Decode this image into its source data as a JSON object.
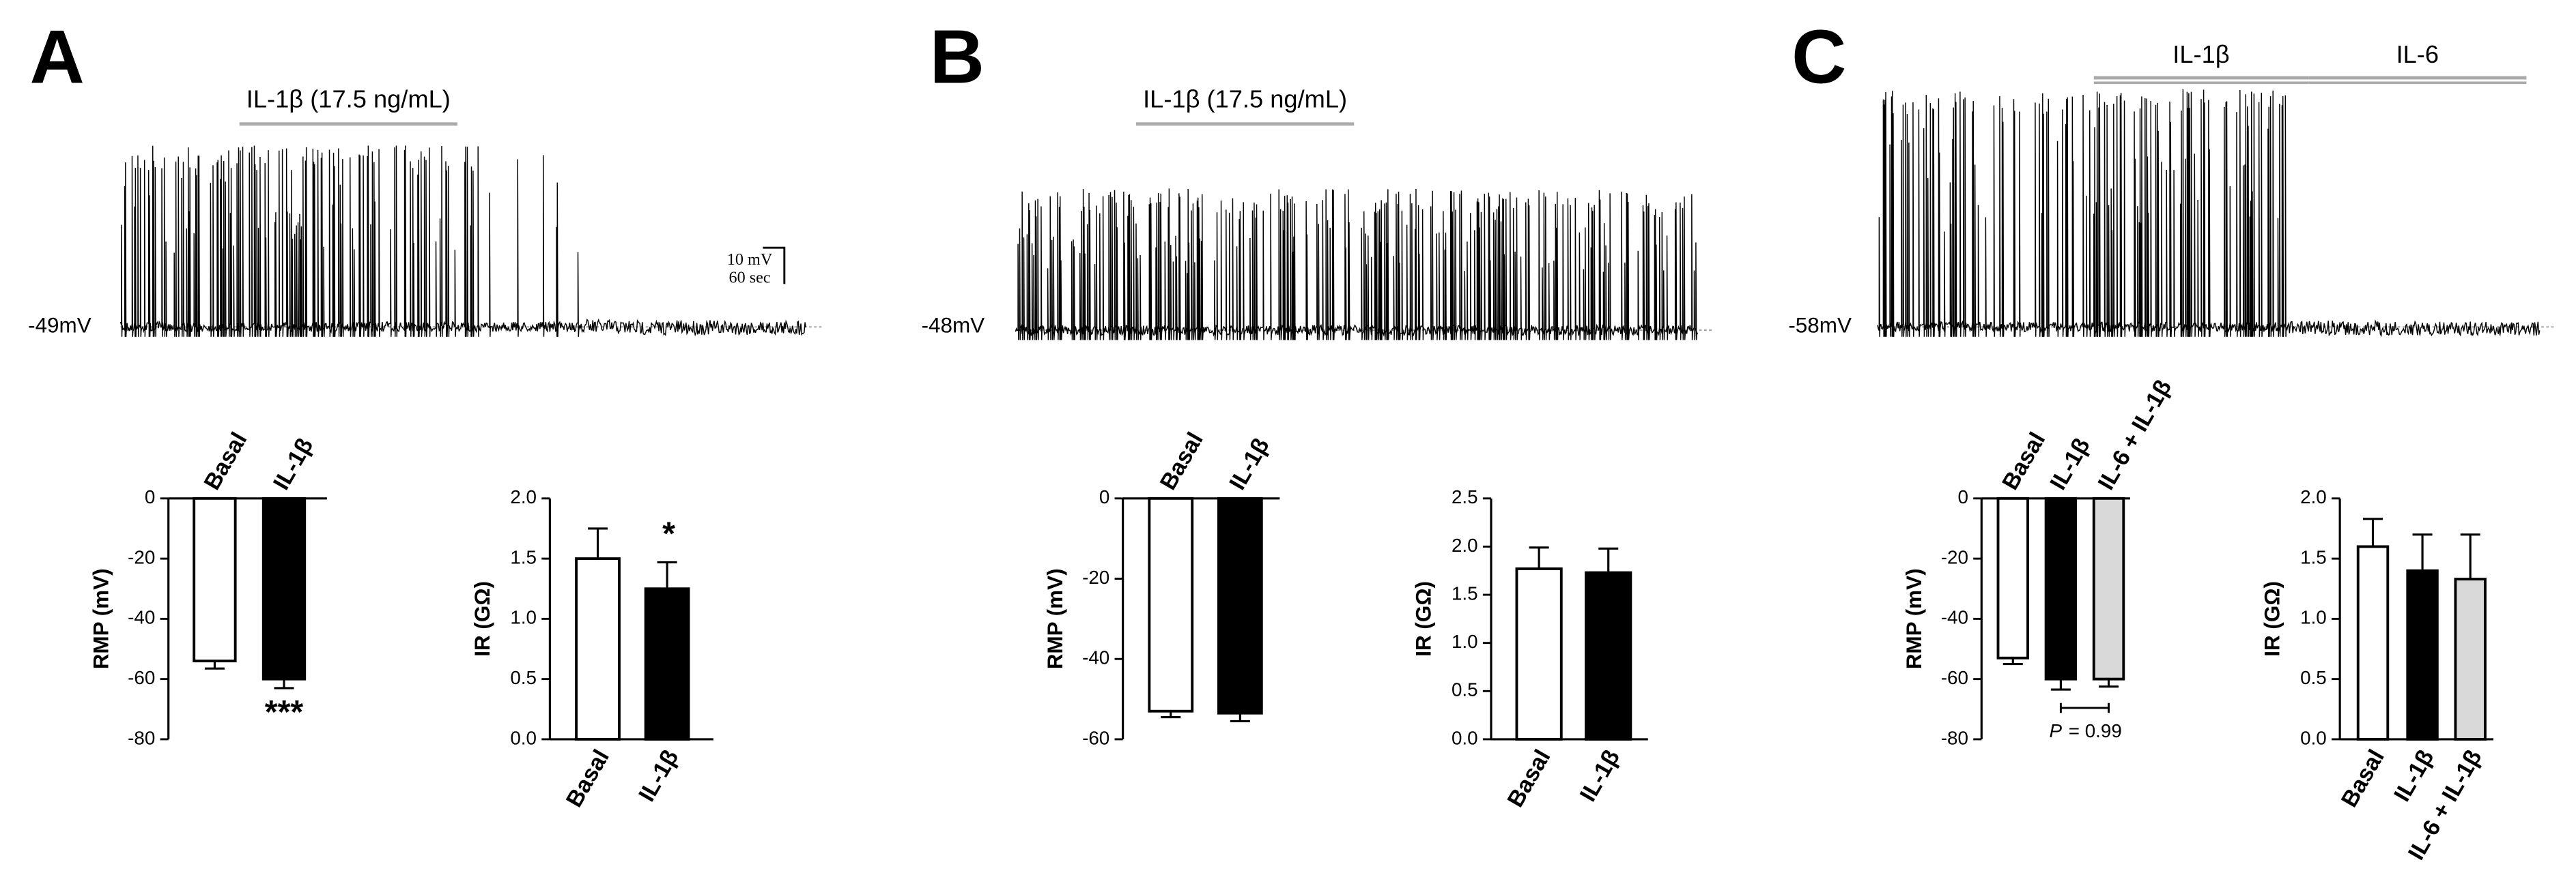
{
  "panels": [
    {
      "label": "A",
      "trace": {
        "stimuli": [
          {
            "label": "IL-1β (17.5 ng/mL)"
          }
        ],
        "baseline_label": "-49mV",
        "scale_bar": [
          "10 mV",
          "60 sec"
        ]
      },
      "charts": [
        {
          "type": "bar",
          "ylabel": "RMP (mV)",
          "categories": [
            "Basal",
            "IL-1β"
          ],
          "values": [
            -54,
            -60
          ],
          "errors": [
            2.5,
            3
          ],
          "colors": [
            "#ffffff",
            "#000000"
          ],
          "ylim": [
            -80,
            0
          ],
          "yticks": [
            0,
            -20,
            -40,
            -60,
            -80
          ],
          "category_labels": "top",
          "annotations": [
            {
              "text": "***"
            }
          ]
        },
        {
          "type": "bar",
          "ylabel": "IR (GΩ)",
          "categories": [
            "Basal",
            "IL-1β"
          ],
          "values": [
            1.5,
            1.25
          ],
          "errors": [
            0.25,
            0.22
          ],
          "colors": [
            "#ffffff",
            "#000000"
          ],
          "ylim": [
            0,
            2
          ],
          "yticks": [
            {
              "value": 0,
              "label": "0.0"
            },
            {
              "value": 0.5,
              "label": "0.5"
            },
            {
              "value": 1,
              "label": "1.0"
            },
            {
              "value": 1.5,
              "label": "1.5"
            },
            {
              "value": 2,
              "label": "2.0"
            }
          ],
          "category_labels": "bottom",
          "annotations": [
            {
              "text": "*"
            }
          ]
        }
      ]
    },
    {
      "label": "B",
      "trace": {
        "stimuli": [
          {
            "label": "IL-1β (17.5 ng/mL)"
          }
        ],
        "baseline_label": "-48mV"
      },
      "charts": [
        {
          "type": "bar",
          "ylabel": "RMP (mV)",
          "categories": [
            "Basal",
            "IL-1β"
          ],
          "values": [
            -53,
            -53.5
          ],
          "errors": [
            1.5,
            2
          ],
          "colors": [
            "#ffffff",
            "#000000"
          ],
          "ylim": [
            -60,
            0
          ],
          "yticks": [
            0,
            -20,
            -40,
            -60
          ],
          "category_labels": "top"
        },
        {
          "type": "bar",
          "ylabel": "IR (GΩ)",
          "categories": [
            "Basal",
            "IL-1β"
          ],
          "values": [
            1.77,
            1.73
          ],
          "errors": [
            0.22,
            0.25
          ],
          "colors": [
            "#ffffff",
            "#000000"
          ],
          "ylim": [
            0,
            2.5
          ],
          "yticks": [
            {
              "value": 0,
              "label": "0.0"
            },
            {
              "value": 0.5,
              "label": "0.5"
            },
            {
              "value": 1,
              "label": "1.0"
            },
            {
              "value": 1.5,
              "label": "1.5"
            },
            {
              "value": 2,
              "label": "2.0"
            },
            {
              "value": 2.5,
              "label": "2.5"
            }
          ],
          "category_labels": "bottom"
        }
      ]
    },
    {
      "label": "C",
      "trace": {
        "stimuli": [
          {
            "label": "IL-1β"
          },
          {
            "label": "IL-6"
          }
        ],
        "baseline_label": "-58mV"
      },
      "charts": [
        {
          "type": "bar",
          "ylabel": "RMP (mV)",
          "categories": [
            "Basal",
            "IL-1β",
            "IL-6 + IL-1β"
          ],
          "values": [
            -53,
            -60,
            -60
          ],
          "errors": [
            2,
            3.5,
            2.5
          ],
          "colors": [
            "#ffffff",
            "#000000",
            "#d9d9d9"
          ],
          "ylim": [
            -80,
            0
          ],
          "yticks": [
            0,
            -20,
            -40,
            -60,
            -80
          ],
          "category_labels": "top",
          "annotations": [
            {
              "italic": "P",
              "text": "= 0.99"
            }
          ]
        },
        {
          "type": "bar",
          "ylabel": "IR (GΩ)",
          "categories": [
            "Basal",
            "IL-1β",
            "IL-6 + IL-1β"
          ],
          "values": [
            1.6,
            1.4,
            1.33
          ],
          "errors": [
            0.23,
            0.3,
            0.37
          ],
          "colors": [
            "#ffffff",
            "#000000",
            "#d9d9d9"
          ],
          "ylim": [
            0,
            2
          ],
          "yticks": [
            {
              "value": 0,
              "label": "0.0"
            },
            {
              "value": 0.5,
              "label": "0.5"
            },
            {
              "value": 1,
              "label": "1.0"
            },
            {
              "value": 1.5,
              "label": "1.5"
            },
            {
              "value": 2,
              "label": "2.0"
            }
          ],
          "category_labels": "bottom"
        }
      ]
    }
  ]
}
